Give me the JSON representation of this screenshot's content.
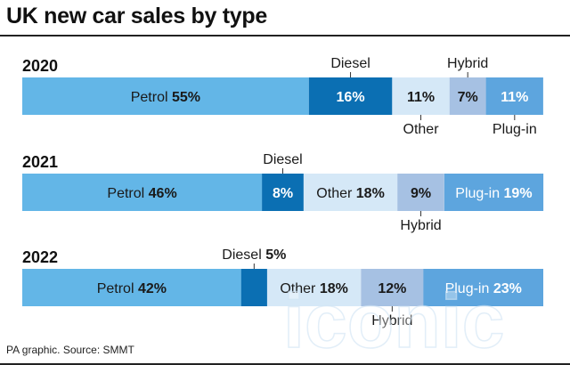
{
  "header": {
    "title": "UK new car sales by type",
    "source": "PA graphic. Source: SMMT"
  },
  "watermark": {
    "text": "iconic"
  },
  "colors": {
    "petrol": "#63b6e7",
    "diesel": "#0b6fb3",
    "other": "#d5e8f7",
    "hybrid": "#a6c1e3",
    "plugin": "#5da5de",
    "text_dark": "#1a1a1a",
    "text_light": "#ffffff"
  },
  "chart_data": {
    "type": "bar",
    "orientation": "horizontal-stacked",
    "title": "UK new car sales by type",
    "unit": "%",
    "categories": [
      "2020",
      "2021",
      "2022"
    ],
    "series": [
      {
        "name": "Petrol",
        "values": [
          55,
          46,
          42
        ]
      },
      {
        "name": "Diesel",
        "values": [
          16,
          8,
          5
        ]
      },
      {
        "name": "Other",
        "values": [
          11,
          18,
          18
        ]
      },
      {
        "name": "Hybrid",
        "values": [
          7,
          9,
          12
        ]
      },
      {
        "name": "Plug-in",
        "values": [
          11,
          19,
          23
        ]
      }
    ]
  }
}
